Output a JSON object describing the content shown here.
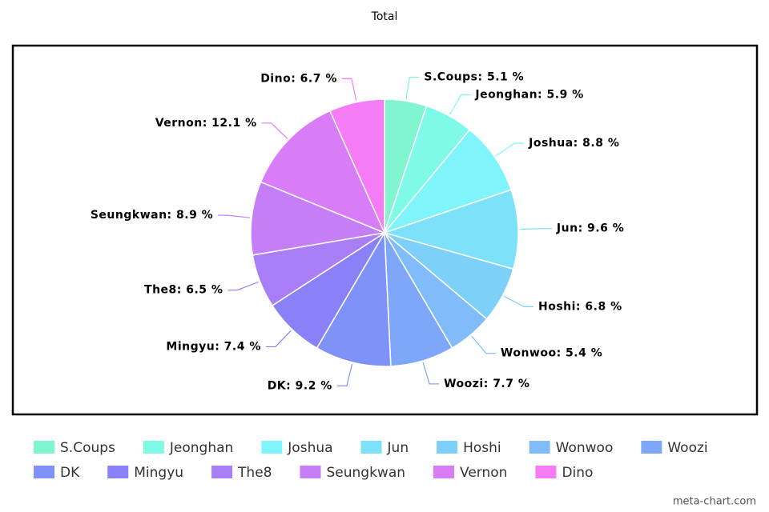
{
  "chart_data": {
    "type": "pie",
    "title": "Total",
    "categories": [
      "S.Coups",
      "Jeonghan",
      "Joshua",
      "Jun",
      "Hoshi",
      "Wonwoo",
      "Woozi",
      "DK",
      "Mingyu",
      "The8",
      "Seungkwan",
      "Vernon",
      "Dino"
    ],
    "values": [
      5.1,
      5.9,
      8.8,
      9.6,
      6.8,
      5.4,
      7.7,
      9.2,
      7.4,
      6.5,
      8.9,
      12.1,
      6.7
    ],
    "value_labels": [
      "S.Coups: 5.1 %",
      "Jeonghan: 5.9 %",
      "Joshua: 8.8 %",
      "Jun: 9.6 %",
      "Hoshi: 6.8 %",
      "Wonwoo: 5.4 %",
      "Woozi: 7.7 %",
      "DK: 9.2 %",
      "Mingyu: 7.4 %",
      "The8: 6.5 %",
      "Seungkwan: 8.9 %",
      "Vernon: 12.1 %",
      "Dino: 6.7 %"
    ],
    "colors": [
      "#80f5cf",
      "#7ff9e8",
      "#7ff5fb",
      "#7de2f9",
      "#7dd0f9",
      "#7fbcf9",
      "#7fa7f9",
      "#7f92f8",
      "#8a80f8",
      "#a97ef7",
      "#c67ef7",
      "#d97cf8",
      "#f57cf5"
    ],
    "watermark": "meta-chart.com"
  }
}
